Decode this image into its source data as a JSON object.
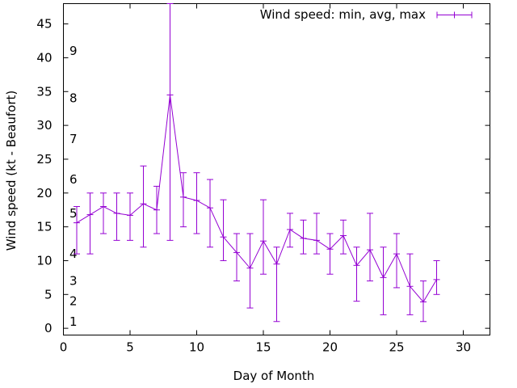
{
  "chart_data": {
    "type": "line",
    "title": "",
    "xlabel": "Day of Month",
    "ylabel": "Wind speed (kt - Beaufort)",
    "xlim": [
      0,
      32
    ],
    "ylim": [
      -1,
      48
    ],
    "xticks": [
      0,
      5,
      10,
      15,
      20,
      25,
      30
    ],
    "yticks": [
      0,
      5,
      10,
      15,
      20,
      25,
      30,
      35,
      40,
      45
    ],
    "grid": false,
    "legend": "top-right",
    "color": "#9400d3",
    "beaufort_labels": [
      {
        "text": "1",
        "y": 1
      },
      {
        "text": "2",
        "y": 4
      },
      {
        "text": "3",
        "y": 7
      },
      {
        "text": "4",
        "y": 11
      },
      {
        "text": "5",
        "y": 17
      },
      {
        "text": "6",
        "y": 22
      },
      {
        "text": "7",
        "y": 28
      },
      {
        "text": "8",
        "y": 34
      },
      {
        "text": "9",
        "y": 41
      }
    ],
    "series": [
      {
        "name": "Wind speed: min, avg, max",
        "x": [
          1,
          2,
          3,
          4,
          5,
          6,
          7,
          8,
          9,
          10,
          11,
          12,
          13,
          14,
          15,
          16,
          17,
          18,
          19,
          20,
          21,
          22,
          23,
          24,
          25,
          26,
          27,
          28
        ],
        "avg": [
          15.6,
          16.8,
          18,
          17,
          16.7,
          18.4,
          17.5,
          34.5,
          19.4,
          18.9,
          17.8,
          13.5,
          11.2,
          8.9,
          12.9,
          9.5,
          14.6,
          13.3,
          13,
          11.7,
          13.7,
          9.3,
          11.6,
          7.5,
          11,
          6.2,
          3.9,
          7.2
        ],
        "min": [
          11,
          11,
          14,
          13,
          13,
          12,
          14,
          13,
          15,
          14,
          12,
          10,
          7,
          3,
          8,
          1,
          12,
          11,
          11,
          8,
          11,
          4,
          7,
          2,
          6,
          2,
          1,
          5
        ],
        "max": [
          18,
          20,
          20,
          20,
          20,
          24,
          21,
          48,
          23,
          23,
          22,
          19,
          14,
          14,
          19,
          12,
          17,
          16,
          17,
          14,
          16,
          12,
          17,
          12,
          14,
          11,
          7,
          10
        ]
      }
    ]
  }
}
